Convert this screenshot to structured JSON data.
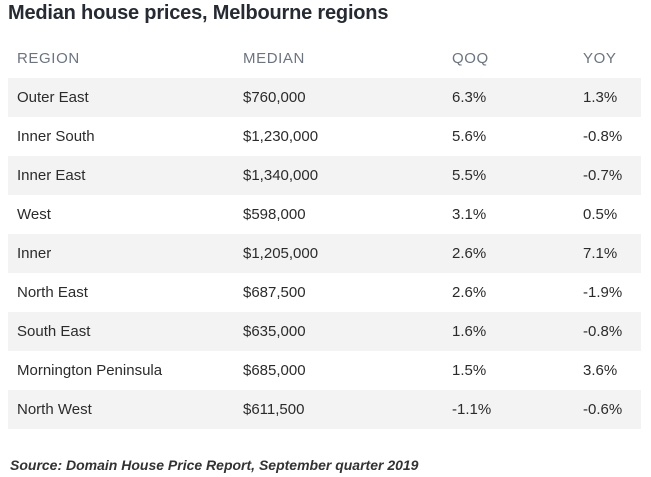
{
  "title": "Median house prices, Melbourne regions",
  "table": {
    "headers": [
      "REGION",
      "MEDIAN",
      "QOQ",
      "YOY"
    ],
    "rows": [
      [
        "Outer East",
        "$760,000",
        "6.3%",
        "1.3%"
      ],
      [
        "Inner South",
        "$1,230,000",
        "5.6%",
        "-0.8%"
      ],
      [
        "Inner East",
        "$1,340,000",
        "5.5%",
        "-0.7%"
      ],
      [
        "West",
        "$598,000",
        "3.1%",
        "0.5%"
      ],
      [
        "Inner",
        "$1,205,000",
        "2.6%",
        "7.1%"
      ],
      [
        "North East",
        "$687,500",
        "2.6%",
        "-1.9%"
      ],
      [
        "South East",
        "$635,000",
        "1.6%",
        "-0.8%"
      ],
      [
        "Mornington Peninsula",
        "$685,000",
        "1.5%",
        "3.6%"
      ],
      [
        "North West",
        "$611,500",
        "-1.1%",
        "-0.6%"
      ]
    ]
  },
  "source": "Source: Domain House Price Report, September quarter 2019"
}
